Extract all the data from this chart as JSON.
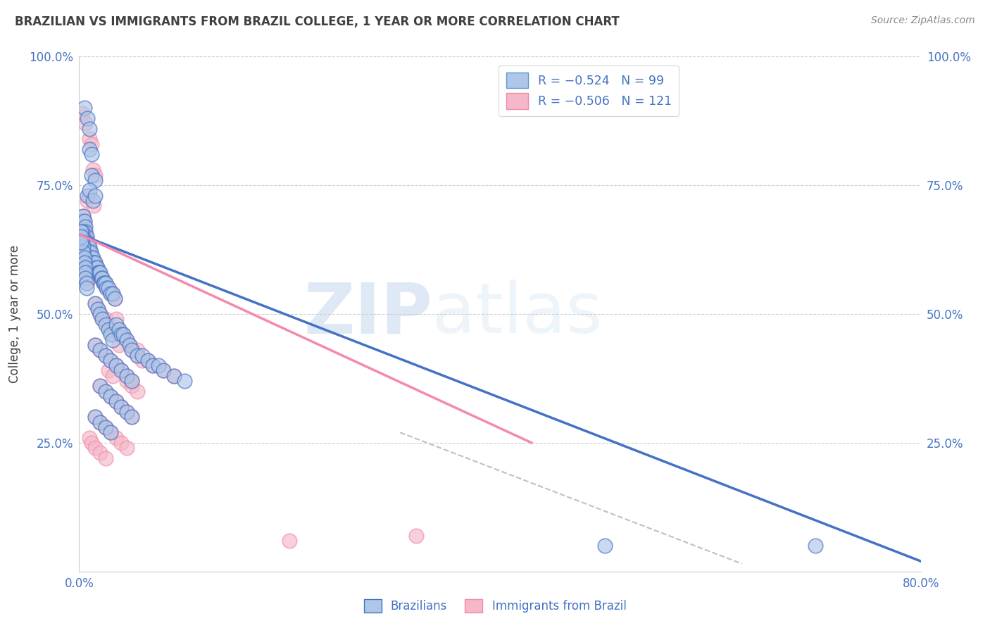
{
  "title": "BRAZILIAN VS IMMIGRANTS FROM BRAZIL COLLEGE, 1 YEAR OR MORE CORRELATION CHART",
  "source": "Source: ZipAtlas.com",
  "ylabel": "College, 1 year or more",
  "xlim": [
    0.0,
    0.8
  ],
  "ylim": [
    0.0,
    1.0
  ],
  "legend_entries": [
    {
      "label": "R = −0.524   N = 99",
      "color": "#aec6e8",
      "edge": "#5b9bd5"
    },
    {
      "label": "R = −0.506   N = 121",
      "color": "#f4b8c8",
      "edge": "#f48aab"
    }
  ],
  "blue_line_x": [
    0.0,
    0.8
  ],
  "blue_line_y": [
    0.655,
    0.02
  ],
  "pink_line_x": [
    0.0,
    0.43
  ],
  "pink_line_y": [
    0.655,
    0.25
  ],
  "diag_line_x": [
    0.305,
    0.63
  ],
  "diag_line_y": [
    0.27,
    0.015
  ],
  "scatter_blue": [
    [
      0.005,
      0.9
    ],
    [
      0.008,
      0.88
    ],
    [
      0.01,
      0.86
    ],
    [
      0.01,
      0.82
    ],
    [
      0.012,
      0.81
    ],
    [
      0.012,
      0.77
    ],
    [
      0.015,
      0.76
    ],
    [
      0.008,
      0.73
    ],
    [
      0.01,
      0.74
    ],
    [
      0.013,
      0.72
    ],
    [
      0.015,
      0.73
    ],
    [
      0.003,
      0.68
    ],
    [
      0.004,
      0.69
    ],
    [
      0.005,
      0.68
    ],
    [
      0.006,
      0.67
    ],
    [
      0.006,
      0.66
    ],
    [
      0.007,
      0.65
    ],
    [
      0.007,
      0.64
    ],
    [
      0.008,
      0.64
    ],
    [
      0.009,
      0.63
    ],
    [
      0.01,
      0.63
    ],
    [
      0.01,
      0.62
    ],
    [
      0.011,
      0.62
    ],
    [
      0.012,
      0.61
    ],
    [
      0.013,
      0.61
    ],
    [
      0.013,
      0.6
    ],
    [
      0.014,
      0.6
    ],
    [
      0.015,
      0.6
    ],
    [
      0.016,
      0.59
    ],
    [
      0.017,
      0.59
    ],
    [
      0.018,
      0.58
    ],
    [
      0.019,
      0.58
    ],
    [
      0.02,
      0.58
    ],
    [
      0.021,
      0.57
    ],
    [
      0.022,
      0.57
    ],
    [
      0.023,
      0.56
    ],
    [
      0.024,
      0.56
    ],
    [
      0.025,
      0.56
    ],
    [
      0.026,
      0.55
    ],
    [
      0.028,
      0.55
    ],
    [
      0.03,
      0.54
    ],
    [
      0.032,
      0.54
    ],
    [
      0.034,
      0.53
    ],
    [
      0.003,
      0.66
    ],
    [
      0.003,
      0.65
    ],
    [
      0.003,
      0.64
    ],
    [
      0.004,
      0.63
    ],
    [
      0.004,
      0.62
    ],
    [
      0.005,
      0.61
    ],
    [
      0.005,
      0.6
    ],
    [
      0.006,
      0.59
    ],
    [
      0.006,
      0.58
    ],
    [
      0.006,
      0.57
    ],
    [
      0.007,
      0.56
    ],
    [
      0.007,
      0.55
    ],
    [
      0.002,
      0.66
    ],
    [
      0.002,
      0.65
    ],
    [
      0.002,
      0.64
    ],
    [
      0.015,
      0.52
    ],
    [
      0.018,
      0.51
    ],
    [
      0.02,
      0.5
    ],
    [
      0.022,
      0.49
    ],
    [
      0.025,
      0.48
    ],
    [
      0.028,
      0.47
    ],
    [
      0.03,
      0.46
    ],
    [
      0.032,
      0.45
    ],
    [
      0.035,
      0.48
    ],
    [
      0.038,
      0.47
    ],
    [
      0.04,
      0.46
    ],
    [
      0.042,
      0.46
    ],
    [
      0.045,
      0.45
    ],
    [
      0.048,
      0.44
    ],
    [
      0.05,
      0.43
    ],
    [
      0.055,
      0.42
    ],
    [
      0.06,
      0.42
    ],
    [
      0.065,
      0.41
    ],
    [
      0.07,
      0.4
    ],
    [
      0.075,
      0.4
    ],
    [
      0.08,
      0.39
    ],
    [
      0.09,
      0.38
    ],
    [
      0.1,
      0.37
    ],
    [
      0.015,
      0.44
    ],
    [
      0.02,
      0.43
    ],
    [
      0.025,
      0.42
    ],
    [
      0.03,
      0.41
    ],
    [
      0.035,
      0.4
    ],
    [
      0.04,
      0.39
    ],
    [
      0.045,
      0.38
    ],
    [
      0.05,
      0.37
    ],
    [
      0.02,
      0.36
    ],
    [
      0.025,
      0.35
    ],
    [
      0.03,
      0.34
    ],
    [
      0.035,
      0.33
    ],
    [
      0.04,
      0.32
    ],
    [
      0.045,
      0.31
    ],
    [
      0.05,
      0.3
    ],
    [
      0.015,
      0.3
    ],
    [
      0.02,
      0.29
    ],
    [
      0.025,
      0.28
    ],
    [
      0.03,
      0.27
    ],
    [
      0.5,
      0.05
    ],
    [
      0.7,
      0.05
    ]
  ],
  "scatter_pink": [
    [
      0.003,
      0.89
    ],
    [
      0.006,
      0.87
    ],
    [
      0.01,
      0.84
    ],
    [
      0.012,
      0.83
    ],
    [
      0.013,
      0.78
    ],
    [
      0.015,
      0.77
    ],
    [
      0.008,
      0.72
    ],
    [
      0.01,
      0.73
    ],
    [
      0.014,
      0.71
    ],
    [
      0.003,
      0.68
    ],
    [
      0.004,
      0.69
    ],
    [
      0.005,
      0.68
    ],
    [
      0.005,
      0.67
    ],
    [
      0.006,
      0.66
    ],
    [
      0.006,
      0.65
    ],
    [
      0.007,
      0.65
    ],
    [
      0.007,
      0.64
    ],
    [
      0.008,
      0.64
    ],
    [
      0.009,
      0.63
    ],
    [
      0.009,
      0.63
    ],
    [
      0.01,
      0.62
    ],
    [
      0.011,
      0.62
    ],
    [
      0.012,
      0.61
    ],
    [
      0.012,
      0.61
    ],
    [
      0.013,
      0.6
    ],
    [
      0.014,
      0.6
    ],
    [
      0.015,
      0.6
    ],
    [
      0.016,
      0.59
    ],
    [
      0.017,
      0.59
    ],
    [
      0.018,
      0.58
    ],
    [
      0.019,
      0.58
    ],
    [
      0.02,
      0.57
    ],
    [
      0.021,
      0.57
    ],
    [
      0.022,
      0.57
    ],
    [
      0.023,
      0.56
    ],
    [
      0.025,
      0.56
    ],
    [
      0.026,
      0.55
    ],
    [
      0.028,
      0.55
    ],
    [
      0.03,
      0.54
    ],
    [
      0.032,
      0.54
    ],
    [
      0.034,
      0.53
    ],
    [
      0.003,
      0.67
    ],
    [
      0.003,
      0.66
    ],
    [
      0.003,
      0.65
    ],
    [
      0.004,
      0.64
    ],
    [
      0.004,
      0.63
    ],
    [
      0.005,
      0.62
    ],
    [
      0.005,
      0.61
    ],
    [
      0.006,
      0.6
    ],
    [
      0.006,
      0.59
    ],
    [
      0.006,
      0.58
    ],
    [
      0.007,
      0.57
    ],
    [
      0.007,
      0.56
    ],
    [
      0.002,
      0.67
    ],
    [
      0.002,
      0.66
    ],
    [
      0.002,
      0.65
    ],
    [
      0.015,
      0.52
    ],
    [
      0.018,
      0.51
    ],
    [
      0.02,
      0.5
    ],
    [
      0.022,
      0.49
    ],
    [
      0.025,
      0.49
    ],
    [
      0.028,
      0.48
    ],
    [
      0.03,
      0.47
    ],
    [
      0.032,
      0.46
    ],
    [
      0.035,
      0.49
    ],
    [
      0.038,
      0.47
    ],
    [
      0.04,
      0.46
    ],
    [
      0.042,
      0.46
    ],
    [
      0.045,
      0.45
    ],
    [
      0.048,
      0.44
    ],
    [
      0.05,
      0.43
    ],
    [
      0.015,
      0.44
    ],
    [
      0.02,
      0.43
    ],
    [
      0.025,
      0.42
    ],
    [
      0.03,
      0.41
    ],
    [
      0.035,
      0.4
    ],
    [
      0.04,
      0.39
    ],
    [
      0.045,
      0.38
    ],
    [
      0.05,
      0.37
    ],
    [
      0.02,
      0.36
    ],
    [
      0.025,
      0.35
    ],
    [
      0.03,
      0.34
    ],
    [
      0.035,
      0.33
    ],
    [
      0.04,
      0.32
    ],
    [
      0.045,
      0.31
    ],
    [
      0.05,
      0.3
    ],
    [
      0.015,
      0.3
    ],
    [
      0.02,
      0.29
    ],
    [
      0.025,
      0.28
    ],
    [
      0.03,
      0.27
    ],
    [
      0.035,
      0.26
    ],
    [
      0.04,
      0.25
    ],
    [
      0.045,
      0.24
    ],
    [
      0.01,
      0.26
    ],
    [
      0.012,
      0.25
    ],
    [
      0.015,
      0.24
    ],
    [
      0.02,
      0.23
    ],
    [
      0.025,
      0.22
    ],
    [
      0.2,
      0.06
    ],
    [
      0.32,
      0.07
    ],
    [
      0.055,
      0.42
    ],
    [
      0.06,
      0.41
    ],
    [
      0.065,
      0.41
    ],
    [
      0.07,
      0.4
    ],
    [
      0.08,
      0.39
    ],
    [
      0.09,
      0.38
    ],
    [
      0.038,
      0.44
    ],
    [
      0.055,
      0.43
    ],
    [
      0.045,
      0.37
    ],
    [
      0.05,
      0.36
    ],
    [
      0.055,
      0.35
    ],
    [
      0.028,
      0.39
    ],
    [
      0.032,
      0.38
    ]
  ],
  "watermark_zip": "ZIP",
  "watermark_atlas": "atlas",
  "blue_color": "#4472c4",
  "blue_fill": "#aec6e8",
  "pink_color": "#f48aab",
  "pink_fill": "#f4b8c8",
  "grid_color": "#d0d0d0",
  "axis_color": "#4472c4",
  "title_color": "#404040",
  "source_color": "#888888"
}
